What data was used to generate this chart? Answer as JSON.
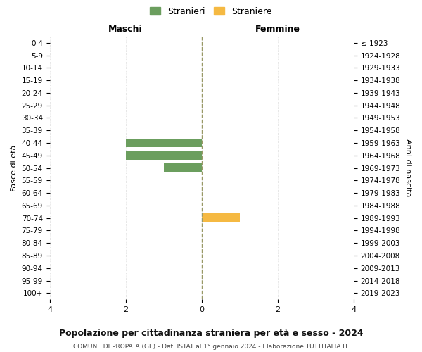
{
  "age_groups": [
    "0-4",
    "5-9",
    "10-14",
    "15-19",
    "20-24",
    "25-29",
    "30-34",
    "35-39",
    "40-44",
    "45-49",
    "50-54",
    "55-59",
    "60-64",
    "65-69",
    "70-74",
    "75-79",
    "80-84",
    "85-89",
    "90-94",
    "95-99",
    "100+"
  ],
  "birth_years": [
    "2019-2023",
    "2014-2018",
    "2009-2013",
    "2004-2008",
    "1999-2003",
    "1994-1998",
    "1989-1993",
    "1984-1988",
    "1979-1983",
    "1974-1978",
    "1969-1973",
    "1964-1968",
    "1959-1963",
    "1954-1958",
    "1949-1953",
    "1944-1948",
    "1939-1943",
    "1934-1938",
    "1929-1933",
    "1924-1928",
    "≤ 1923"
  ],
  "males": [
    0,
    0,
    0,
    0,
    0,
    0,
    0,
    0,
    2,
    2,
    1,
    0,
    0,
    0,
    0,
    0,
    0,
    0,
    0,
    0,
    0
  ],
  "females": [
    0,
    0,
    0,
    0,
    0,
    0,
    0,
    0,
    0,
    0,
    0,
    0,
    0,
    0,
    1,
    0,
    0,
    0,
    0,
    0,
    0
  ],
  "male_color": "#6b9e5e",
  "female_color": "#f5b942",
  "xlim": 4,
  "title": "Popolazione per cittadinanza straniera per età e sesso - 2024",
  "subtitle": "COMUNE DI PROPATA (GE) - Dati ISTAT al 1° gennaio 2024 - Elaborazione TUTTITALIA.IT",
  "xlabel_left": "Maschi",
  "xlabel_right": "Femmine",
  "ylabel_left": "Fasce di età",
  "ylabel_right": "Anni di nascita",
  "legend_male": "Stranieri",
  "legend_female": "Straniere",
  "background_color": "#ffffff",
  "grid_color": "#cccccc"
}
